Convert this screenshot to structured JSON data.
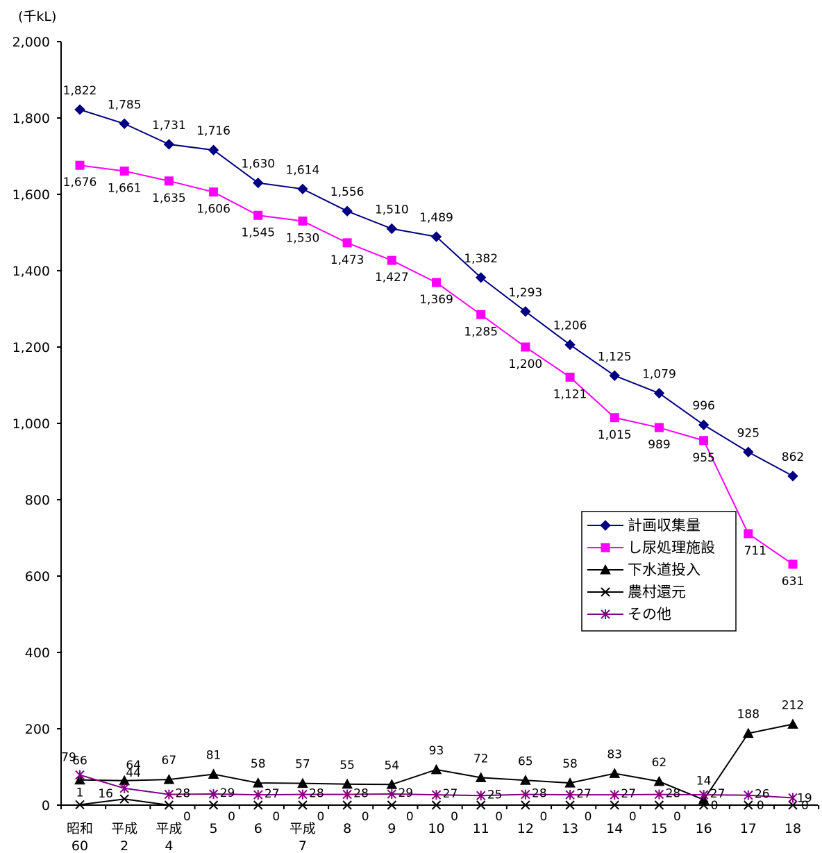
{
  "chart_data": {
    "type": "line",
    "unit_label": "(千kL)",
    "ylim": [
      0,
      2000
    ],
    "yticks": [
      "0",
      "200",
      "400",
      "600",
      "800",
      "1,000",
      "1,200",
      "1,400",
      "1,600",
      "1,800",
      "2,000"
    ],
    "categories": [
      [
        "昭和",
        "60"
      ],
      [
        "平成",
        "2"
      ],
      [
        "平成",
        "4"
      ],
      [
        "5"
      ],
      [
        "6"
      ],
      [
        "平成",
        "7"
      ],
      [
        "8"
      ],
      [
        "9"
      ],
      [
        "10"
      ],
      [
        "11"
      ],
      [
        "12"
      ],
      [
        "13"
      ],
      [
        "14"
      ],
      [
        "15"
      ],
      [
        "16"
      ],
      [
        "17"
      ],
      [
        "18"
      ]
    ],
    "legend_position": "right",
    "series": [
      {
        "name": "計画収集量",
        "color": "#000080",
        "marker": "diamond",
        "values": [
          1822,
          1785,
          1731,
          1716,
          1630,
          1614,
          1556,
          1510,
          1489,
          1382,
          1293,
          1206,
          1125,
          1079,
          996,
          925,
          862
        ],
        "labels": [
          "1,822",
          "1,785",
          "1,731",
          "1,716",
          "1,630",
          "1,614",
          "1,556",
          "1,510",
          "1,489",
          "1,382",
          "1,293",
          "1,206",
          "1,125",
          "1,079",
          "996",
          "925",
          "862"
        ]
      },
      {
        "name": "し尿処理施設",
        "color": "#ff00ff",
        "marker": "square",
        "values": [
          1676,
          1661,
          1635,
          1606,
          1545,
          1530,
          1473,
          1427,
          1369,
          1285,
          1200,
          1121,
          1015,
          989,
          955,
          711,
          631
        ],
        "labels": [
          "1,676",
          "1,661",
          "1,635",
          "1,606",
          "1,545",
          "1,530",
          "1,473",
          "1,427",
          "1,369",
          "1,285",
          "1,200",
          "1,121",
          "1,015",
          "989",
          "955",
          "711",
          "631"
        ]
      },
      {
        "name": "下水道投入",
        "color": "#000000",
        "marker": "triangle",
        "values": [
          66,
          64,
          67,
          81,
          58,
          57,
          55,
          54,
          93,
          72,
          65,
          58,
          83,
          62,
          14,
          188,
          212
        ],
        "labels": [
          "66",
          "64",
          "67",
          "81",
          "58",
          "57",
          "55",
          "54",
          "93",
          "72",
          "65",
          "58",
          "83",
          "62",
          "14",
          "188",
          "212"
        ]
      },
      {
        "name": "農村還元",
        "color": "#000000",
        "marker": "x",
        "values": [
          1,
          16,
          0,
          0,
          0,
          0,
          0,
          0,
          0,
          0,
          0,
          0,
          0,
          0,
          0,
          0,
          0
        ],
        "labels": [
          "1",
          "16",
          "0",
          "0",
          "0",
          "0",
          "0",
          "0",
          "0",
          "0",
          "0",
          "0",
          "0",
          "0",
          "0",
          "0",
          "0"
        ]
      },
      {
        "name": "その他",
        "color": "#800080",
        "marker": "star",
        "values": [
          79,
          44,
          28,
          29,
          27,
          28,
          28,
          29,
          27,
          25,
          28,
          27,
          27,
          28,
          27,
          26,
          19
        ],
        "labels": [
          "79",
          "44",
          "28",
          "29",
          "27",
          "28",
          "28",
          "29",
          "27",
          "25",
          "28",
          "27",
          "27",
          "28",
          "27",
          "26",
          "19"
        ]
      }
    ]
  }
}
